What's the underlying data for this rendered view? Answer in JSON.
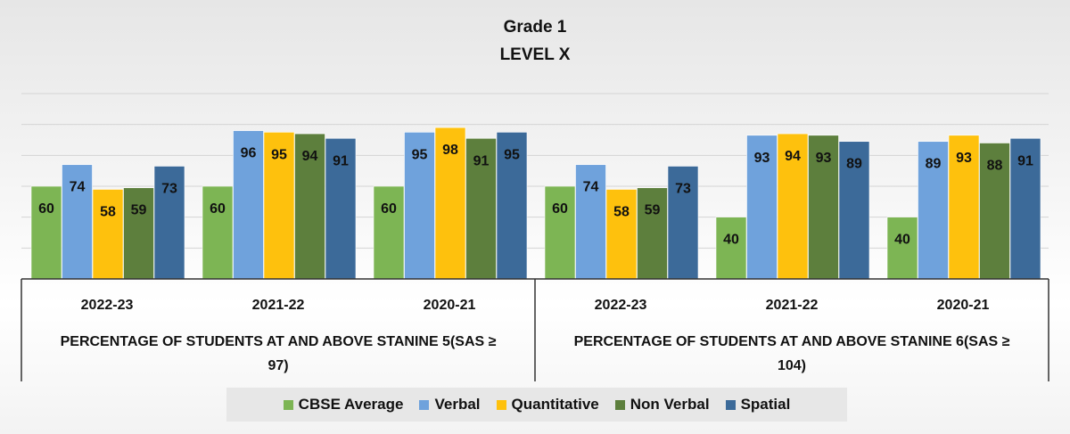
{
  "title": "Grade 1",
  "subtitle": "LEVEL X",
  "chart_data": {
    "type": "bar",
    "ylim": [
      0,
      120
    ],
    "grid": true,
    "legend_position": "bottom",
    "group_labels": [
      "PERCENTAGE OF STUDENTS AT AND ABOVE STANINE 5(SAS ≥ 97)",
      "PERCENTAGE OF STUDENTS AT AND ABOVE STANINE 6(SAS ≥ 104)"
    ],
    "categories": [
      "2022-23",
      "2021-22",
      "2020-21",
      "2022-23",
      "2021-22",
      "2020-21"
    ],
    "series": [
      {
        "name": "CBSE Average",
        "color": "#7db554",
        "values": [
          60,
          60,
          60,
          60,
          40,
          40
        ]
      },
      {
        "name": "Verbal",
        "color": "#6fa2dc",
        "values": [
          74,
          96,
          95,
          74,
          93,
          89
        ]
      },
      {
        "name": "Quantitative",
        "color": "#fec10d",
        "values": [
          58,
          95,
          98,
          58,
          94,
          93
        ]
      },
      {
        "name": "Non Verbal",
        "color": "#5d7f3d",
        "values": [
          59,
          94,
          91,
          59,
          93,
          88
        ]
      },
      {
        "name": "Spatial",
        "color": "#3c6a99",
        "values": [
          73,
          91,
          95,
          73,
          89,
          91
        ]
      }
    ]
  }
}
